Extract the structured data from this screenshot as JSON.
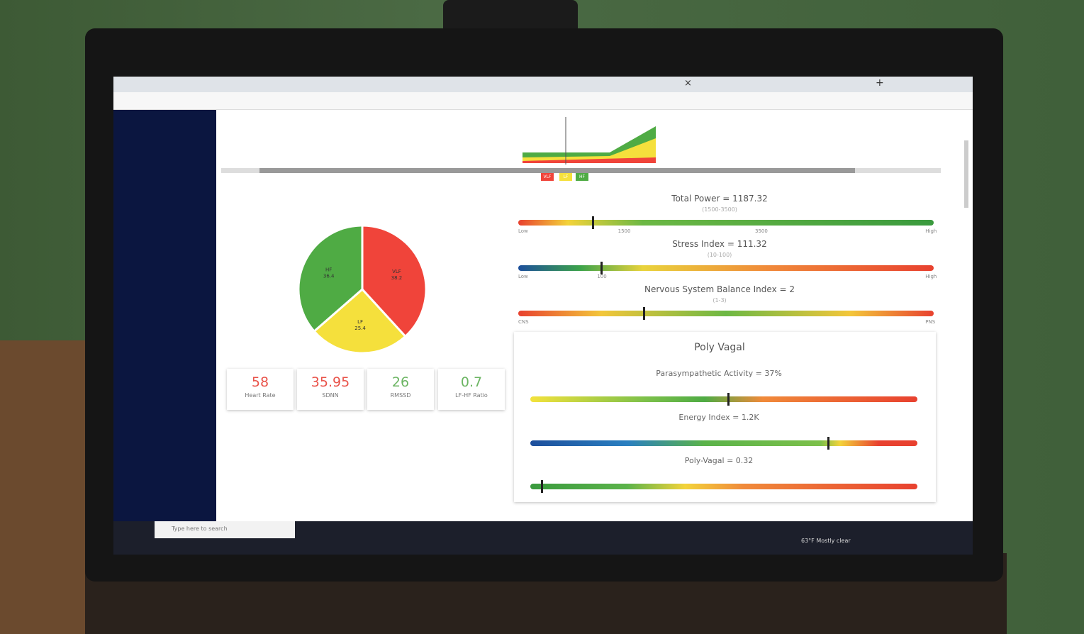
{
  "browser": {
    "tab_close": "×",
    "new_tab": "+"
  },
  "legend": [
    "VLF",
    "LF",
    "HF"
  ],
  "pie_chart": {
    "type": "pie",
    "categories": [
      "VLF",
      "LF",
      "HF"
    ],
    "values": [
      38.2,
      25.4,
      36.4
    ],
    "colors": [
      "#f0443a",
      "#f5e03c",
      "#4fab44"
    ]
  },
  "metrics": [
    {
      "value": "58",
      "label": "Heart Rate",
      "color": "#e9534a"
    },
    {
      "value": "35.95",
      "label": "SDNN",
      "color": "#e9534a"
    },
    {
      "value": "26",
      "label": "RMSSD",
      "color": "#6cb563"
    },
    {
      "value": "0.7",
      "label": "LF-HF Ratio",
      "color": "#6cb563"
    }
  ],
  "gauges": [
    {
      "title": "Total Power = 1187.32",
      "range": "(1500-3500)",
      "ticks": [
        "Low",
        "1500",
        "3500",
        "High"
      ]
    },
    {
      "title": "Stress Index = 111.32",
      "range": "(10-100)",
      "ticks": [
        "Low",
        "100",
        "High"
      ]
    },
    {
      "title": "Nervous System Balance Index = 2",
      "range": "(1-3)",
      "ticks": [
        "CNS",
        "PNS"
      ]
    }
  ],
  "poly_vagal": {
    "title": "Poly Vagal",
    "gauges": [
      {
        "title": "Parasympathetic Activity = 37%"
      },
      {
        "title": "Energy Index = 1.2K"
      },
      {
        "title": "Poly-Vagal = 0.32"
      }
    ]
  },
  "taskbar": {
    "search": "Type here to search",
    "weather": "63°F  Mostly clear"
  }
}
